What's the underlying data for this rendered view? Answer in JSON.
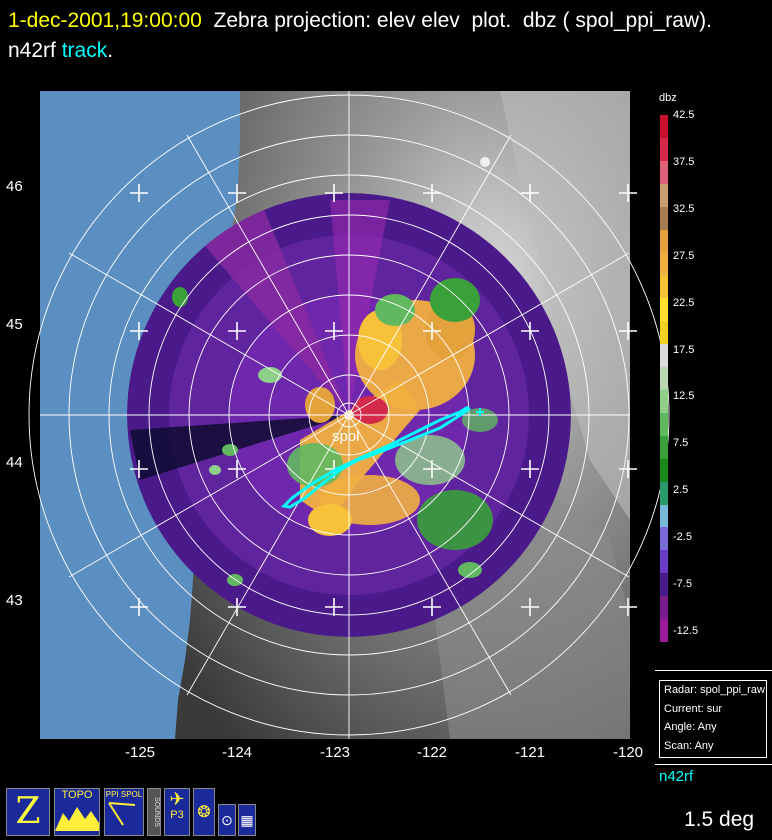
{
  "title": {
    "date": "1-dec-2001,19:00:00",
    "text": "  Zebra projection: elev elev  plot.  dbz ( spol_ppi_raw).   n42rf ",
    "track": "track",
    "end": "."
  },
  "map": {
    "radar_label": "spol",
    "lat_labels": [
      "46",
      "45",
      "44",
      "43"
    ],
    "lon_labels": [
      "-125",
      "-124",
      "-123",
      "-122",
      "-121",
      "-120"
    ],
    "colors": {
      "water": "#5b8fc2",
      "track": "#00ffff",
      "rings": "#ffffff"
    }
  },
  "colorbar": {
    "title": "dbz",
    "labels": [
      "42.5",
      "37.5",
      "32.5",
      "27.5",
      "22.5",
      "17.5",
      "12.5",
      "7.5",
      "2.5",
      "-2.5",
      "-7.5",
      "-12.5"
    ],
    "colors": [
      "#c8102e",
      "#d42b4a",
      "#e0607a",
      "#c89e6a",
      "#a57c52",
      "#e3a23c",
      "#f0b040",
      "#f7c23a",
      "#fde030",
      "#f5d020",
      "#dcdcdc",
      "#b8d8b0",
      "#8ed08a",
      "#62b860",
      "#3aa03a",
      "#1a8a1a",
      "#2a9a6a",
      "#78b8d8",
      "#7a6ad8",
      "#6a3ac8",
      "#4a1a8a",
      "#7a1a8a",
      "#9a1a9a"
    ]
  },
  "info": {
    "radar": "Radar: spol_ppi_raw",
    "current": "Current: sur",
    "angle": "Angle: Any",
    "scan": "Scan: Any"
  },
  "platform": "n42rf",
  "elevation": "1.5 deg",
  "icons": [
    {
      "name": "zebra-logo-icon",
      "label": "Z"
    },
    {
      "name": "topo-icon",
      "label": "TOPO"
    },
    {
      "name": "ppi-spol-icon",
      "label": "PPI SPOL"
    },
    {
      "name": "sounds-icon",
      "label": "SOUNDS"
    },
    {
      "name": "p3-aircraft-icon",
      "label": "P3"
    },
    {
      "name": "radar-dish-icon",
      "label": ""
    },
    {
      "name": "target-icon",
      "label": ""
    },
    {
      "name": "grid-icon",
      "label": ""
    }
  ]
}
